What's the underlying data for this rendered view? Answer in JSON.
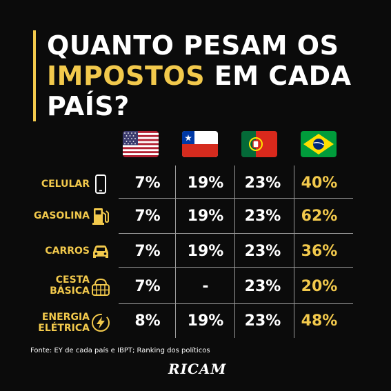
{
  "title": {
    "line1": "QUANTO PESAM OS",
    "line2_highlight": "IMPOSTOS",
    "line2_rest": " EM CADA",
    "line3": "PAÍS?"
  },
  "colors": {
    "background": "#0b0b0b",
    "accent": "#f2c94c",
    "text": "#ffffff"
  },
  "flags": [
    "usa-flag-icon",
    "chile-flag-icon",
    "portugal-flag-icon",
    "brazil-flag-icon"
  ],
  "rows": [
    {
      "label": "CELULAR",
      "icon": "phone-icon",
      "values": [
        "7%",
        "19%",
        "23%",
        "40%"
      ]
    },
    {
      "label": "GASOLINA",
      "icon": "fuel-pump-icon",
      "values": [
        "7%",
        "19%",
        "23%",
        "62%"
      ]
    },
    {
      "label": "CARROS",
      "icon": "car-icon",
      "values": [
        "7%",
        "19%",
        "23%",
        "36%"
      ]
    },
    {
      "label_line1": "CESTA",
      "label_line2": "BÁSICA",
      "icon": "basket-icon",
      "values": [
        "7%",
        "-",
        "23%",
        "20%"
      ]
    },
    {
      "label_line1": "ENERGIA",
      "label_line2": "ELÉTRICA",
      "icon": "lightning-icon",
      "values": [
        "8%",
        "19%",
        "23%",
        "48%"
      ]
    }
  ],
  "source": "Fonte: EY de cada país e IBPT; Ranking dos políticos",
  "brand": "RICAM"
}
